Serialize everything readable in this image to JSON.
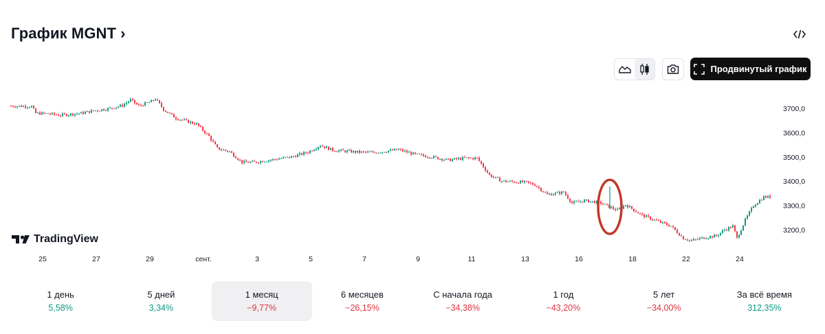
{
  "header": {
    "title": "График MGNT",
    "chevron": "›"
  },
  "toolbar": {
    "embed_icon": "code-icon",
    "area_icon": "area-chart-icon",
    "candles_icon": "candlestick-icon",
    "camera_icon": "camera-icon",
    "advanced_icon": "fullscreen-icon",
    "advanced_label": "Продвинутый график"
  },
  "colors": {
    "up": "#089981",
    "down": "#f23645",
    "highlight": "#c0392b",
    "accent_bg": "#0f0f0f"
  },
  "logo": {
    "text": "TradingView"
  },
  "chart_data": {
    "type": "candlestick",
    "symbol": "MGNT",
    "y_ticks": [
      "3700,0",
      "3600,0",
      "3500,0",
      "3400,0",
      "3300,0",
      "3200,0"
    ],
    "y_tick_values": [
      3700,
      3600,
      3500,
      3400,
      3300,
      3200
    ],
    "ylim": [
      3125,
      3760
    ],
    "x_ticks": [
      "25",
      "27",
      "29",
      "сент.",
      "3",
      "5",
      "7",
      "9",
      "11",
      "13",
      "16",
      "18",
      "22",
      "24"
    ],
    "x_tick_index": [
      12,
      38,
      64,
      90,
      116,
      142,
      168,
      194,
      220,
      246,
      272,
      298,
      324,
      350
    ],
    "close_path": [
      [
        0,
        3710
      ],
      [
        10,
        3708
      ],
      [
        12,
        3680
      ],
      [
        18,
        3678
      ],
      [
        24,
        3672
      ],
      [
        34,
        3680
      ],
      [
        40,
        3690
      ],
      [
        48,
        3700
      ],
      [
        54,
        3712
      ],
      [
        58,
        3735
      ],
      [
        62,
        3710
      ],
      [
        68,
        3728
      ],
      [
        70,
        3740
      ],
      [
        74,
        3695
      ],
      [
        80,
        3660
      ],
      [
        90,
        3635
      ],
      [
        96,
        3585
      ],
      [
        100,
        3535
      ],
      [
        106,
        3522
      ],
      [
        112,
        3478
      ],
      [
        118,
        3478
      ],
      [
        126,
        3488
      ],
      [
        136,
        3500
      ],
      [
        144,
        3520
      ],
      [
        150,
        3548
      ],
      [
        156,
        3528
      ],
      [
        168,
        3520
      ],
      [
        176,
        3518
      ],
      [
        188,
        3530
      ],
      [
        196,
        3510
      ],
      [
        204,
        3500
      ],
      [
        212,
        3487
      ],
      [
        220,
        3495
      ],
      [
        226,
        3495
      ],
      [
        232,
        3425
      ],
      [
        238,
        3400
      ],
      [
        250,
        3395
      ],
      [
        254,
        3385
      ],
      [
        260,
        3345
      ],
      [
        268,
        3355
      ],
      [
        272,
        3310
      ],
      [
        278,
        3320
      ],
      [
        283,
        3315
      ],
      [
        286,
        3310
      ],
      [
        290,
        3295
      ],
      [
        294,
        3280
      ],
      [
        298,
        3303
      ],
      [
        306,
        3260
      ],
      [
        312,
        3240
      ],
      [
        320,
        3215
      ],
      [
        326,
        3165
      ],
      [
        330,
        3155
      ],
      [
        336,
        3168
      ],
      [
        342,
        3175
      ],
      [
        346,
        3200
      ],
      [
        350,
        3215
      ],
      [
        352,
        3165
      ],
      [
        356,
        3240
      ],
      [
        360,
        3300
      ],
      [
        365,
        3335
      ]
    ],
    "annotation": {
      "type": "ellipse",
      "color": "#c0392b",
      "near_index": 288,
      "price_range": [
        3200,
        3400
      ]
    }
  },
  "periods": [
    {
      "label": "1 день",
      "value": "5,58%",
      "dir": "pos"
    },
    {
      "label": "5 дней",
      "value": "3,34%",
      "dir": "pos"
    },
    {
      "label": "1 месяц",
      "value": "−9,77%",
      "dir": "neg",
      "active": true
    },
    {
      "label": "6 месяцев",
      "value": "−26,15%",
      "dir": "neg"
    },
    {
      "label": "С начала года",
      "value": "−34,38%",
      "dir": "neg"
    },
    {
      "label": "1 год",
      "value": "−43,20%",
      "dir": "neg"
    },
    {
      "label": "5 лет",
      "value": "−34,00%",
      "dir": "neg"
    },
    {
      "label": "За всё время",
      "value": "312,35%",
      "dir": "pos"
    }
  ]
}
